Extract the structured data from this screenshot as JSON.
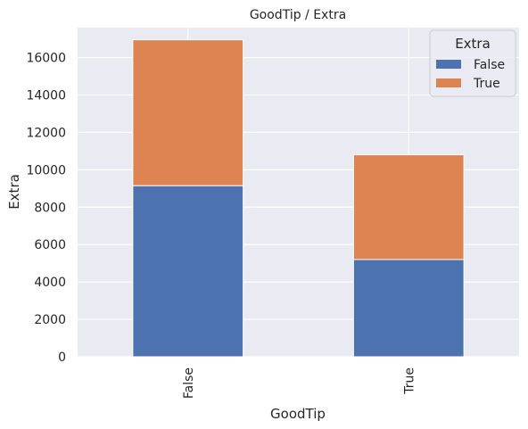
{
  "chart_data": {
    "type": "bar",
    "stacked": true,
    "title": "GoodTip / Extra",
    "xlabel": "GoodTip",
    "ylabel": "Extra",
    "categories": [
      "False",
      "True"
    ],
    "series": [
      {
        "name": "False",
        "values": [
          9150,
          5200
        ]
      },
      {
        "name": "True",
        "values": [
          7800,
          5600
        ]
      }
    ],
    "ylim": [
      0,
      17600
    ],
    "yticks": [
      0,
      2000,
      4000,
      6000,
      8000,
      10000,
      12000,
      14000,
      16000
    ],
    "grid": true,
    "legend": {
      "title": "Extra",
      "position": "top-right"
    },
    "colors": {
      "series": [
        "#4c72b0",
        "#dd8452"
      ],
      "plot_background": "#eaeaf2",
      "grid": "#ffffff"
    }
  }
}
